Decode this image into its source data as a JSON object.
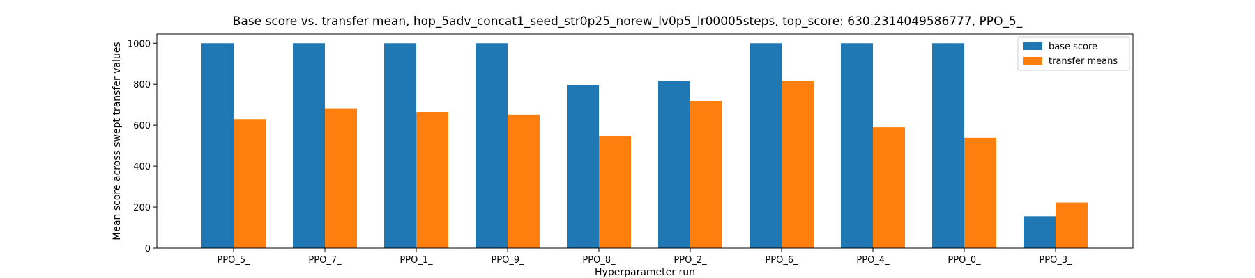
{
  "chart_data": {
    "type": "bar",
    "title": "Base score vs. transfer mean, hop_5adv_concat1_seed_str0p25_norew_lv0p5_lr00005steps, top_score: 630.2314049586777, PPO_5_",
    "xlabel": "Hyperparameter run",
    "ylabel": "Mean score across swept transfer values",
    "categories": [
      "PPO_5_",
      "PPO_7_",
      "PPO_1_",
      "PPO_9_",
      "PPO_8_",
      "PPO_2_",
      "PPO_6_",
      "PPO_4_",
      "PPO_0_",
      "PPO_3_"
    ],
    "series": [
      {
        "name": "base score",
        "color": "#1f77b4",
        "values": [
          1000,
          1000,
          1000,
          1000,
          795,
          815,
          1000,
          1000,
          1000,
          155
        ]
      },
      {
        "name": "transfer means",
        "color": "#ff7f0e",
        "values": [
          630.2314049586777,
          680,
          665,
          652,
          547,
          717,
          815,
          590,
          540,
          222
        ]
      }
    ],
    "ylim": [
      0,
      1045
    ],
    "yticks": [
      0,
      200,
      400,
      600,
      800,
      1000
    ],
    "legend_position": "upper-right",
    "grid": false
  }
}
